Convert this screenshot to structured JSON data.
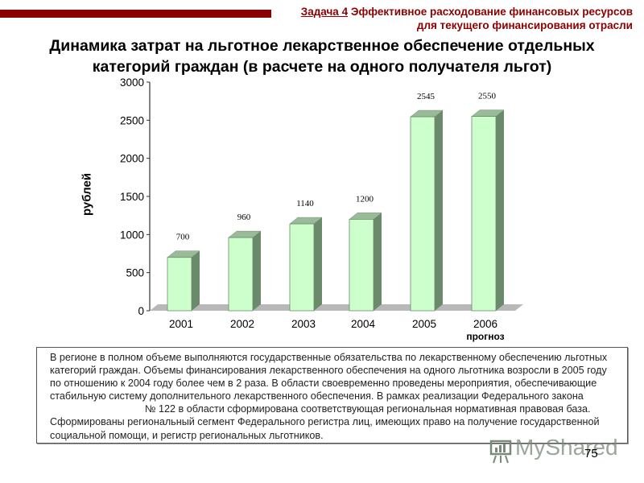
{
  "header": {
    "task_label": "Задача 4",
    "task_line1": "Эффективное расходование финансовых ресурсов",
    "task_line2": "для текущего финансирования отрасли",
    "accent_color": "#8b0000"
  },
  "title": {
    "line1": "Динамика затрат на льготное лекарственное обеспечение отдельных",
    "line2": "категорий граждан (в расчете на одного получателя льгот)"
  },
  "chart_data": {
    "type": "bar",
    "title": "Динамика затрат на льготное лекарственное обеспечение отдельных категорий граждан (в расчете на одного получателя льгот)",
    "categories": [
      "2001",
      "2002",
      "2003",
      "2004",
      "2005",
      "2006"
    ],
    "category_sublabels": [
      "",
      "",
      "",
      "",
      "",
      "прогноз"
    ],
    "values": [
      700,
      960,
      1140,
      1200,
      2545,
      2550
    ],
    "data_labels": [
      "700",
      "960",
      "1140",
      "1200",
      "2545",
      "2550"
    ],
    "xlabel": "",
    "ylabel": "рублей",
    "ylim": [
      0,
      3000
    ],
    "yticks": [
      "0",
      "500",
      "1000",
      "1500",
      "2000",
      "2500",
      "3000"
    ],
    "grid": false,
    "legend": "none",
    "style": "3d-column",
    "bar_color": "#ccffcc",
    "bar_side_color": "#6b8a6b",
    "bar_top_color": "#99bb99",
    "floor_color": "#b8b8b8"
  },
  "body_text": {
    "part1": "В регионе в полном объеме выполняются государственные обязательства по лекарственному обеспечению льготных категорий граждан. Объемы финансирования лекарственного обеспечения на одного льготника возросли в 2005 году по отношению к 2004 году более чем в 2 раза.  В области своевременно проведены мероприятия, обеспечивающие стабильную систему дополнительного лекарственного обеспечения. В рамках реализации Федерального закона",
    "part2": "№ 122  в области сформирована соответствующая региональная нормативная правовая база. Сформированы региональный сегмент Федерального регистра лиц, имеющих право на получение государственной социальной помощи, и регистр региональных льготников."
  },
  "footer": {
    "watermark": "MyShared",
    "page_number": "75"
  }
}
